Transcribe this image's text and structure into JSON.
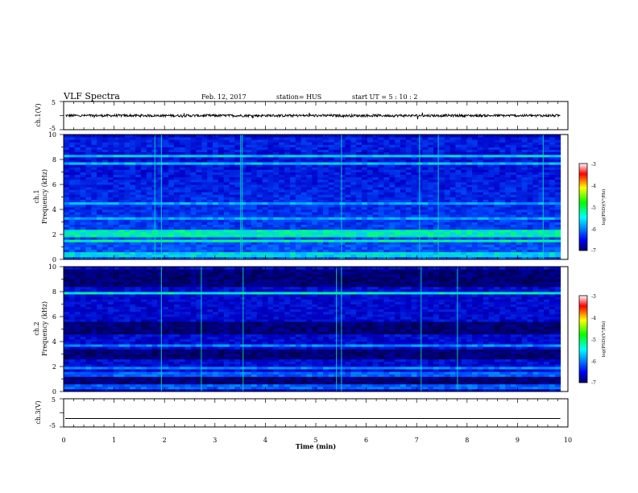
{
  "header": {
    "title": "VLF Spectra",
    "date": "Feb. 12, 2017",
    "station": "station= HUS",
    "start": "start  UT =  5 : 10 : 2"
  },
  "chart_data": [
    {
      "type": "line",
      "name": "ch1_waveform",
      "ylabel": "ch.1(V)",
      "yticks": [
        "5",
        "-5"
      ],
      "ylim": [
        -5,
        5
      ],
      "xlim": [
        0,
        10
      ],
      "level": 0.0,
      "noise": "high",
      "end": 9.85
    },
    {
      "type": "heatmap",
      "name": "ch1_spectrogram",
      "ylabel": "ch.1",
      "ylabel2": "Frequency (kHz)",
      "yticks": [
        "0",
        "2",
        "4",
        "6",
        "8",
        "10"
      ],
      "ylim": [
        0,
        10
      ],
      "xlim": [
        0,
        10
      ],
      "end": 9.85,
      "colorbar": {
        "label": "log(PSD)(V²/Hz)",
        "ticks": [
          "-3",
          "-4",
          "-5",
          "-6",
          "-7"
        ],
        "range": [
          -7,
          -3
        ]
      }
    },
    {
      "type": "heatmap",
      "name": "ch2_spectrogram",
      "ylabel": "ch.2",
      "ylabel2": "Frequency (kHz)",
      "yticks": [
        "0",
        "2",
        "4",
        "6",
        "8",
        "10"
      ],
      "ylim": [
        0,
        10
      ],
      "xlim": [
        0,
        10
      ],
      "end": 9.85,
      "colorbar": {
        "label": "log(PSD)(V²/Hz)",
        "ticks": [
          "-3",
          "-4",
          "-5",
          "-6",
          "-7"
        ],
        "range": [
          -7,
          -3
        ]
      }
    },
    {
      "type": "line",
      "name": "ch3_waveform",
      "ylabel": "ch.3(V)",
      "yticks": [
        "5",
        "-5"
      ],
      "ylim": [
        -5,
        5
      ],
      "xlim": [
        0,
        10
      ],
      "level": -2.0,
      "noise": "none",
      "end": 9.85
    }
  ],
  "xaxis": {
    "label": "Time  (min)",
    "ticks": [
      "0",
      "1",
      "2",
      "3",
      "4",
      "5",
      "6",
      "7",
      "8",
      "9",
      "10"
    ]
  },
  "colors": {
    "background": "#ffffff",
    "ink": "#000000",
    "colormap": [
      "#000066",
      "#0000ff",
      "#00ffff",
      "#00ff00",
      "#ffff00",
      "#ff0000",
      "#ffffff"
    ]
  }
}
